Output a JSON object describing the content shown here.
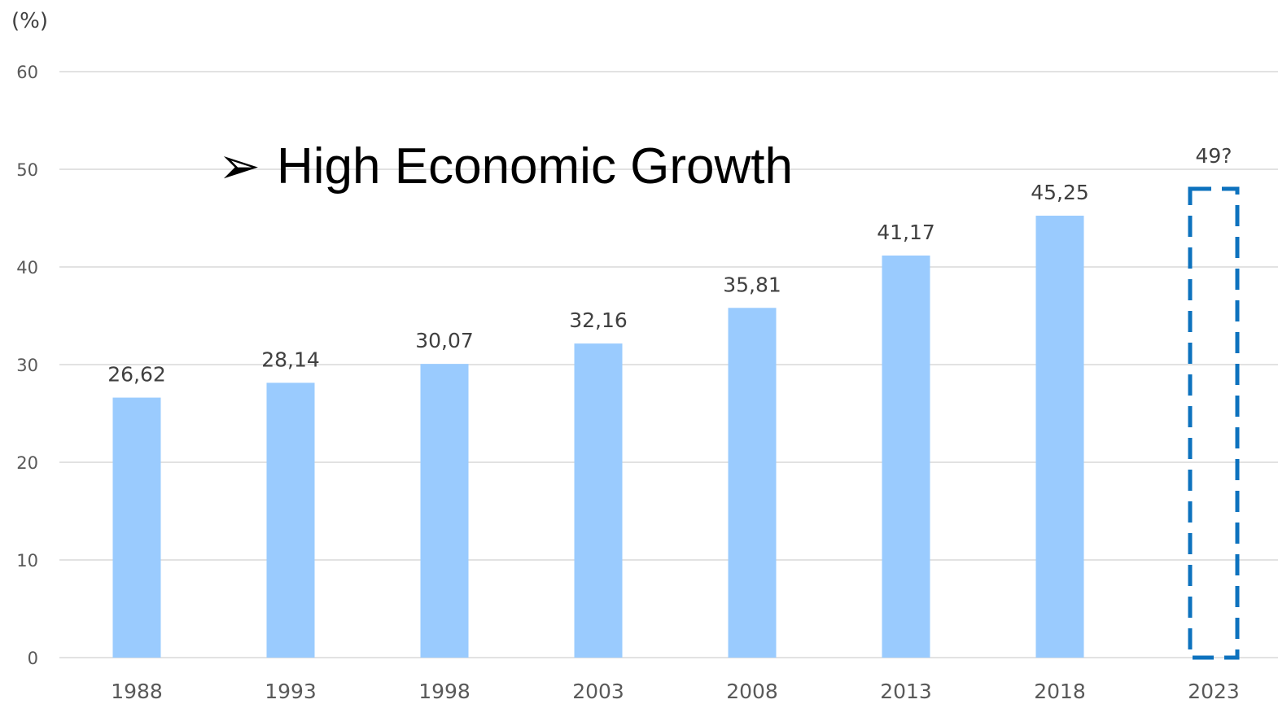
{
  "chart_data": {
    "type": "bar",
    "unit_label": "(%)",
    "annotation": "High Economic Growth",
    "annotation_bullet": "➢",
    "categories": [
      "1988",
      "1993",
      "1998",
      "2003",
      "2008",
      "2013",
      "2018",
      "2023"
    ],
    "values": [
      26.62,
      28.14,
      30.07,
      32.16,
      35.81,
      41.17,
      45.25,
      null
    ],
    "data_labels": [
      "26,62",
      "28,14",
      "30,07",
      "32,16",
      "35,81",
      "41,17",
      "45,25",
      "49?"
    ],
    "projected": {
      "category": "2023",
      "value": 49,
      "label": "49?"
    },
    "ylim": [
      0,
      60
    ],
    "yticks": [
      0,
      10,
      20,
      30,
      40,
      50,
      60
    ],
    "grid": true,
    "colors": {
      "bar": "#9ACBFE",
      "projected_outline": "#0D72BE",
      "grid": "#D9D9D9"
    }
  }
}
